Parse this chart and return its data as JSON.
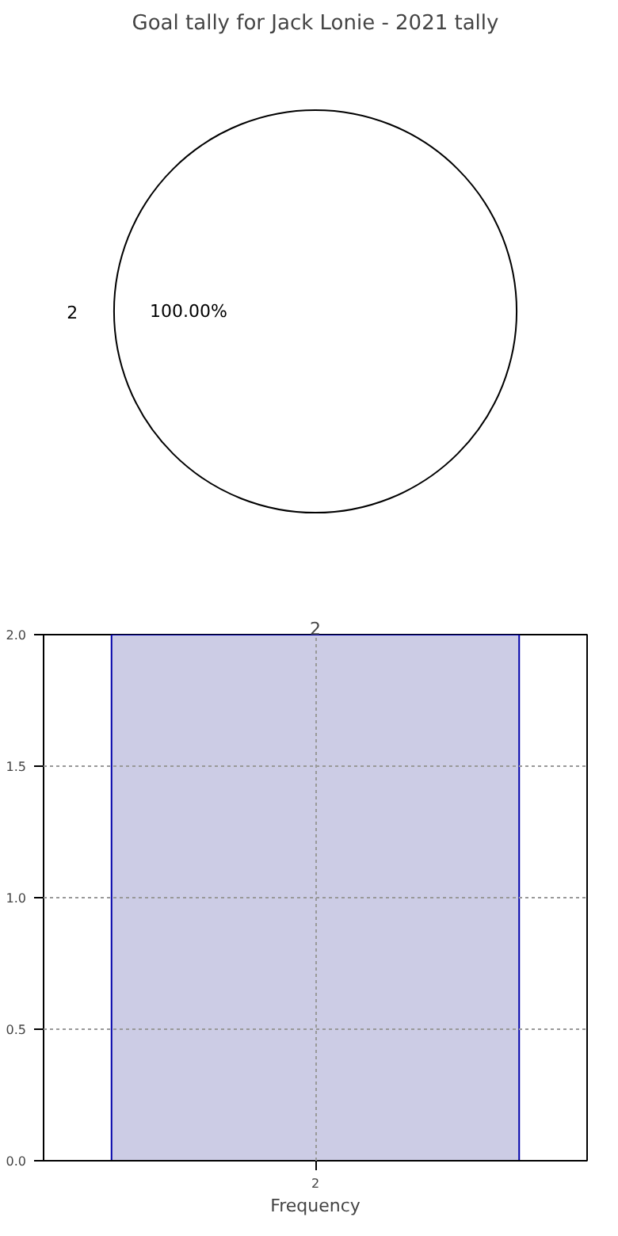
{
  "chart_data": [
    {
      "type": "pie",
      "title": "Goal tally for Jack Lonie - 2021 tally",
      "categories": [
        "2"
      ],
      "values": [
        100
      ],
      "colors": [
        "#ffffff"
      ],
      "value_labels": [
        "100.00%"
      ]
    },
    {
      "type": "bar",
      "categories": [
        "2"
      ],
      "values": [
        2
      ],
      "color": "#ccccE5",
      "xlabel": "Frequency",
      "ylim": [
        0,
        2
      ],
      "yticks": [
        {
          "value": 0,
          "label": "0.0"
        },
        {
          "value": 0.5,
          "label": "0.5"
        },
        {
          "value": 1,
          "label": "1.0"
        },
        {
          "value": 1.5,
          "label": "1.5"
        },
        {
          "value": 2,
          "label": "2.0"
        }
      ],
      "grid": true,
      "annotations": [
        "2"
      ]
    }
  ]
}
